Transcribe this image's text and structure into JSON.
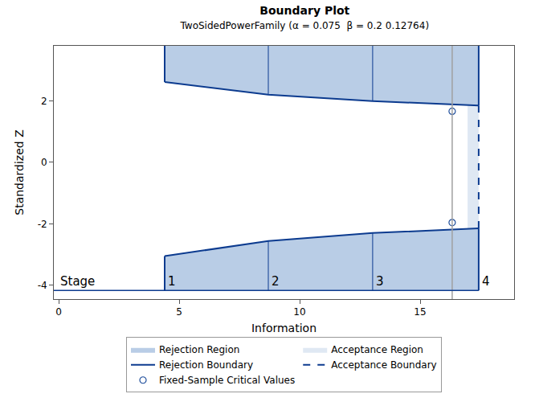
{
  "chart_data": {
    "type": "boundary",
    "title": "Boundary Plot",
    "subtitle": "TwoSidedPowerFamily (α = 0.075  β = 0.2 0.12764)",
    "x_label": "Information",
    "y_label": "Standardized Z",
    "xlim": [
      -0.2,
      18.9
    ],
    "ylim": [
      -4.45,
      3.79
    ],
    "xticks": [
      0,
      5,
      10,
      15
    ],
    "yticks": [
      -4,
      -2,
      0,
      2
    ],
    "grid": false,
    "legend": "bottom",
    "stage_label": "Stage",
    "stages": [
      "1",
      "2",
      "3",
      "4"
    ],
    "stage_line_y": -4.17,
    "x": [
      4.4,
      8.7,
      13.03,
      17.43
    ],
    "upper": [
      2.61,
      2.2,
      1.99,
      1.85
    ],
    "lower": [
      -3.05,
      -2.56,
      -2.3,
      -2.15
    ],
    "series": [
      {
        "name": "Rejection Region",
        "type": "area",
        "color": "#b9cde6"
      },
      {
        "name": "Acceptance Region",
        "type": "area",
        "color": "#dfe8f3",
        "x": [
          16.97,
          17.43
        ]
      },
      {
        "name": "Rejection Boundary",
        "type": "line",
        "color": "#0c3b8f",
        "line_style": "solid"
      },
      {
        "name": "Acceptance Boundary",
        "type": "line",
        "color": "#0c3b8f",
        "line_style": "dash"
      },
      {
        "name": "Fixed-Sample Critical Values",
        "type": "scatter",
        "marker": "circle-open",
        "color": "#1f4e9c",
        "x": [
          16.33,
          16.33
        ],
        "values": [
          1.66,
          -1.96
        ]
      }
    ]
  }
}
